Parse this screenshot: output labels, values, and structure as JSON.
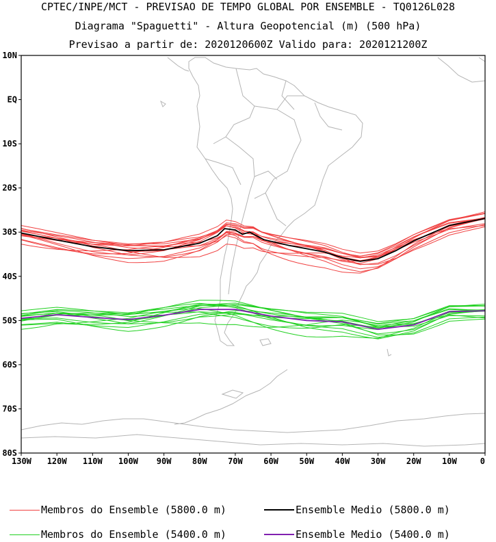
{
  "header": {
    "line1": "CPTEC/INPE/MCT - PREVISAO DE TEMPO GLOBAL POR ENSEMBLE - TQ0126L028",
    "line2": "Diagrama \"Spaguetti\" - Altura Geopotencial (m) (500 hPa)",
    "line3": "Previsao a partir de: 2020120600Z  Valido para: 2020121200Z"
  },
  "axes": {
    "lat_labels": [
      "10N",
      "EQ",
      "10S",
      "20S",
      "30S",
      "40S",
      "50S",
      "60S",
      "70S",
      "80S"
    ],
    "lon_labels": [
      "130W",
      "120W",
      "110W",
      "100W",
      "90W",
      "80W",
      "70W",
      "60W",
      "50W",
      "40W",
      "30W",
      "20W",
      "10W",
      "0"
    ],
    "lon_range": [
      -130,
      0
    ],
    "lat_range": [
      -80,
      10
    ]
  },
  "legend": [
    {
      "label": "Membros do Ensemble (5800.0 m)",
      "color": "#f04040"
    },
    {
      "label": "Ensemble Medio (5800.0 m)",
      "color": "#000000"
    },
    {
      "label": "Membros do Ensemble (5400.0 m)",
      "color": "#20d020"
    },
    {
      "label": "Ensemble Medio (5400.0 m)",
      "color": "#8020b0"
    }
  ],
  "colors": {
    "coast": "#b4b4b4",
    "member_5800": "#f04040",
    "mean_5800": "#000000",
    "member_5400": "#20d020",
    "mean_5400": "#8020b0"
  },
  "chart_data": {
    "type": "line",
    "x_units": "degrees longitude",
    "y_units": "degrees latitude",
    "series": [
      {
        "name": "Ensemble Medio (5800.0 m)",
        "points": [
          [
            -130,
            -30.2
          ],
          [
            -120,
            -31.8
          ],
          [
            -110,
            -33.3
          ],
          [
            -100,
            -34.2
          ],
          [
            -90,
            -34
          ],
          [
            -80,
            -32.5
          ],
          [
            -75,
            -30.8
          ],
          [
            -73,
            -29.2
          ],
          [
            -70,
            -29.5
          ],
          [
            -68,
            -30.5
          ],
          [
            -66,
            -30
          ],
          [
            -62,
            -31.7
          ],
          [
            -55,
            -33
          ],
          [
            -45,
            -34.5
          ],
          [
            -40,
            -35.8
          ],
          [
            -35,
            -36.6
          ],
          [
            -30,
            -36
          ],
          [
            -25,
            -34.2
          ],
          [
            -20,
            -32
          ],
          [
            -10,
            -28.5
          ],
          [
            0,
            -26.9
          ]
        ]
      },
      {
        "name": "Ensemble Medio (5400.0 m)",
        "points": [
          [
            -130,
            -49.5
          ],
          [
            -120,
            -48.7
          ],
          [
            -110,
            -49.3
          ],
          [
            -100,
            -49.8
          ],
          [
            -90,
            -48.8
          ],
          [
            -80,
            -47.5
          ],
          [
            -70,
            -47.5
          ],
          [
            -60,
            -49
          ],
          [
            -50,
            -50
          ],
          [
            -40,
            -50.3
          ],
          [
            -30,
            -52
          ],
          [
            -20,
            -51
          ],
          [
            -10,
            -48
          ],
          [
            0,
            -47.8
          ]
        ]
      }
    ]
  }
}
